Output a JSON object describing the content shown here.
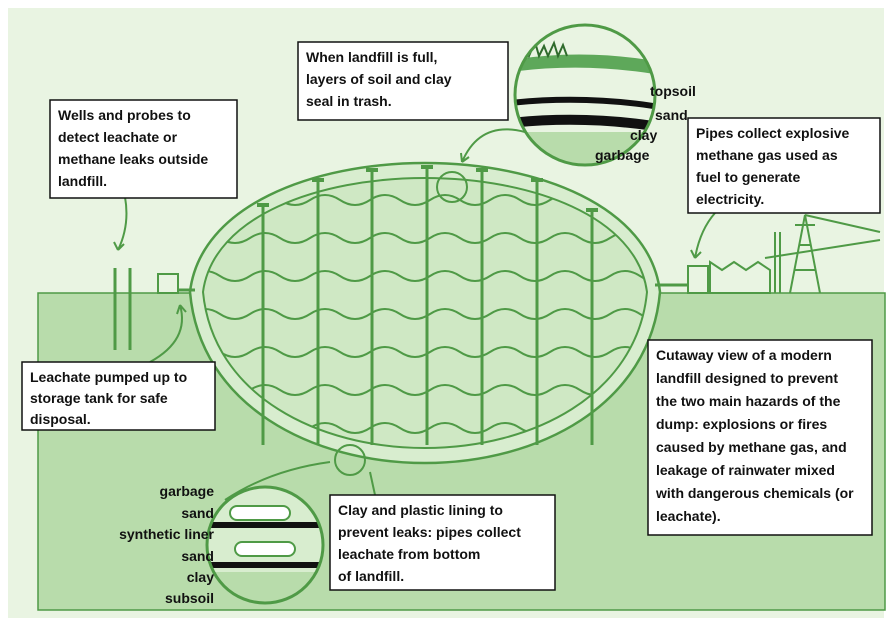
{
  "callouts": {
    "wells": {
      "lines": [
        "Wells and probes to",
        "detect leachate or",
        "methane leaks outside",
        "landfill."
      ]
    },
    "top_seal": {
      "lines": [
        "When landfill is full,",
        "layers of soil and clay",
        "seal in trash."
      ]
    },
    "pipes": {
      "lines": [
        "Pipes collect explosive",
        "methane gas used as",
        "fuel to generate",
        "electricity."
      ]
    },
    "leachate": {
      "lines": [
        "Leachate pumped up to",
        "storage tank for safe",
        "disposal."
      ]
    },
    "cutaway": {
      "lines": [
        "Cutaway view of a modern",
        "landfill designed to prevent",
        "the two main hazards of the",
        "dump: explosions or fires",
        "caused by methane gas, and",
        "leakage of rainwater mixed",
        "with dangerous chemicals (or",
        "leachate)."
      ]
    },
    "lining": {
      "lines": [
        "Clay and plastic lining to",
        "prevent leaks: pipes collect",
        "leachate from bottom",
        "of landfill."
      ]
    }
  },
  "top_layers": [
    "topsoil",
    "sand",
    "clay",
    "garbage"
  ],
  "bottom_layers": [
    "garbage",
    "sand",
    "synthetic liner",
    "sand",
    "clay",
    "subsoil"
  ]
}
